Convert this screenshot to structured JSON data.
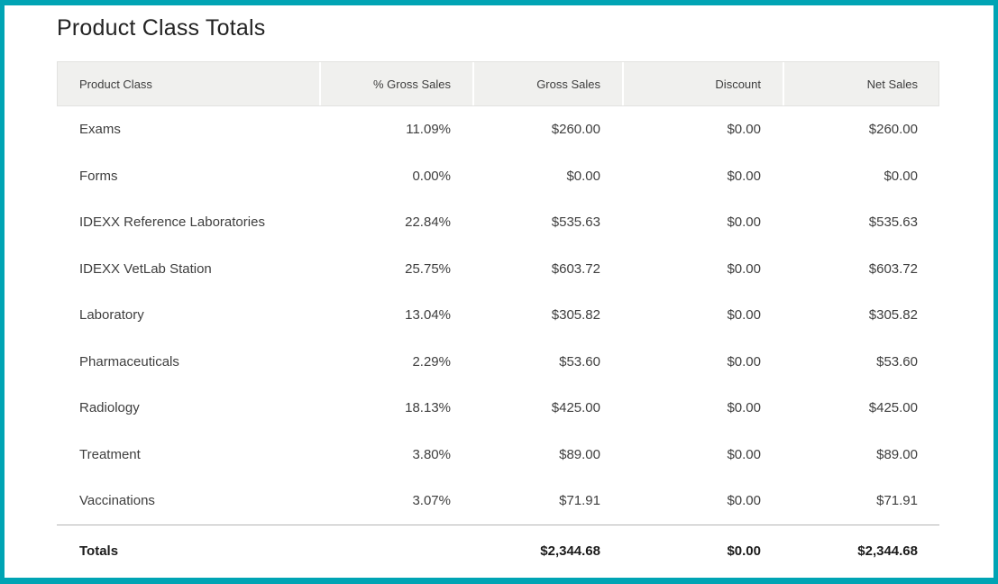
{
  "page": {
    "title": "Product Class Totals",
    "accent_color": "#00a4b4"
  },
  "table": {
    "columns": [
      {
        "label": "Product Class",
        "field": "product_class",
        "align": "left"
      },
      {
        "label": "% Gross Sales",
        "field": "pct_gross_sales",
        "align": "right"
      },
      {
        "label": "Gross Sales",
        "field": "gross_sales",
        "align": "right"
      },
      {
        "label": "Discount",
        "field": "discount",
        "align": "right"
      },
      {
        "label": "Net Sales",
        "field": "net_sales",
        "align": "right"
      }
    ],
    "rows": [
      {
        "product_class": "Exams",
        "pct_gross_sales": "11.09%",
        "gross_sales": "$260.00",
        "discount": "$0.00",
        "net_sales": "$260.00"
      },
      {
        "product_class": "Forms",
        "pct_gross_sales": "0.00%",
        "gross_sales": "$0.00",
        "discount": "$0.00",
        "net_sales": "$0.00"
      },
      {
        "product_class": "IDEXX Reference Laboratories",
        "pct_gross_sales": "22.84%",
        "gross_sales": "$535.63",
        "discount": "$0.00",
        "net_sales": "$535.63"
      },
      {
        "product_class": "IDEXX VetLab Station",
        "pct_gross_sales": "25.75%",
        "gross_sales": "$603.72",
        "discount": "$0.00",
        "net_sales": "$603.72"
      },
      {
        "product_class": "Laboratory",
        "pct_gross_sales": "13.04%",
        "gross_sales": "$305.82",
        "discount": "$0.00",
        "net_sales": "$305.82"
      },
      {
        "product_class": "Pharmaceuticals",
        "pct_gross_sales": "2.29%",
        "gross_sales": "$53.60",
        "discount": "$0.00",
        "net_sales": "$53.60"
      },
      {
        "product_class": "Radiology",
        "pct_gross_sales": "18.13%",
        "gross_sales": "$425.00",
        "discount": "$0.00",
        "net_sales": "$425.00"
      },
      {
        "product_class": "Treatment",
        "pct_gross_sales": "3.80%",
        "gross_sales": "$89.00",
        "discount": "$0.00",
        "net_sales": "$89.00"
      },
      {
        "product_class": "Vaccinations",
        "pct_gross_sales": "3.07%",
        "gross_sales": "$71.91",
        "discount": "$0.00",
        "net_sales": "$71.91"
      }
    ],
    "totals": {
      "product_class": "Totals",
      "pct_gross_sales": "",
      "gross_sales": "$2,344.68",
      "discount": "$0.00",
      "net_sales": "$2,344.68"
    }
  }
}
